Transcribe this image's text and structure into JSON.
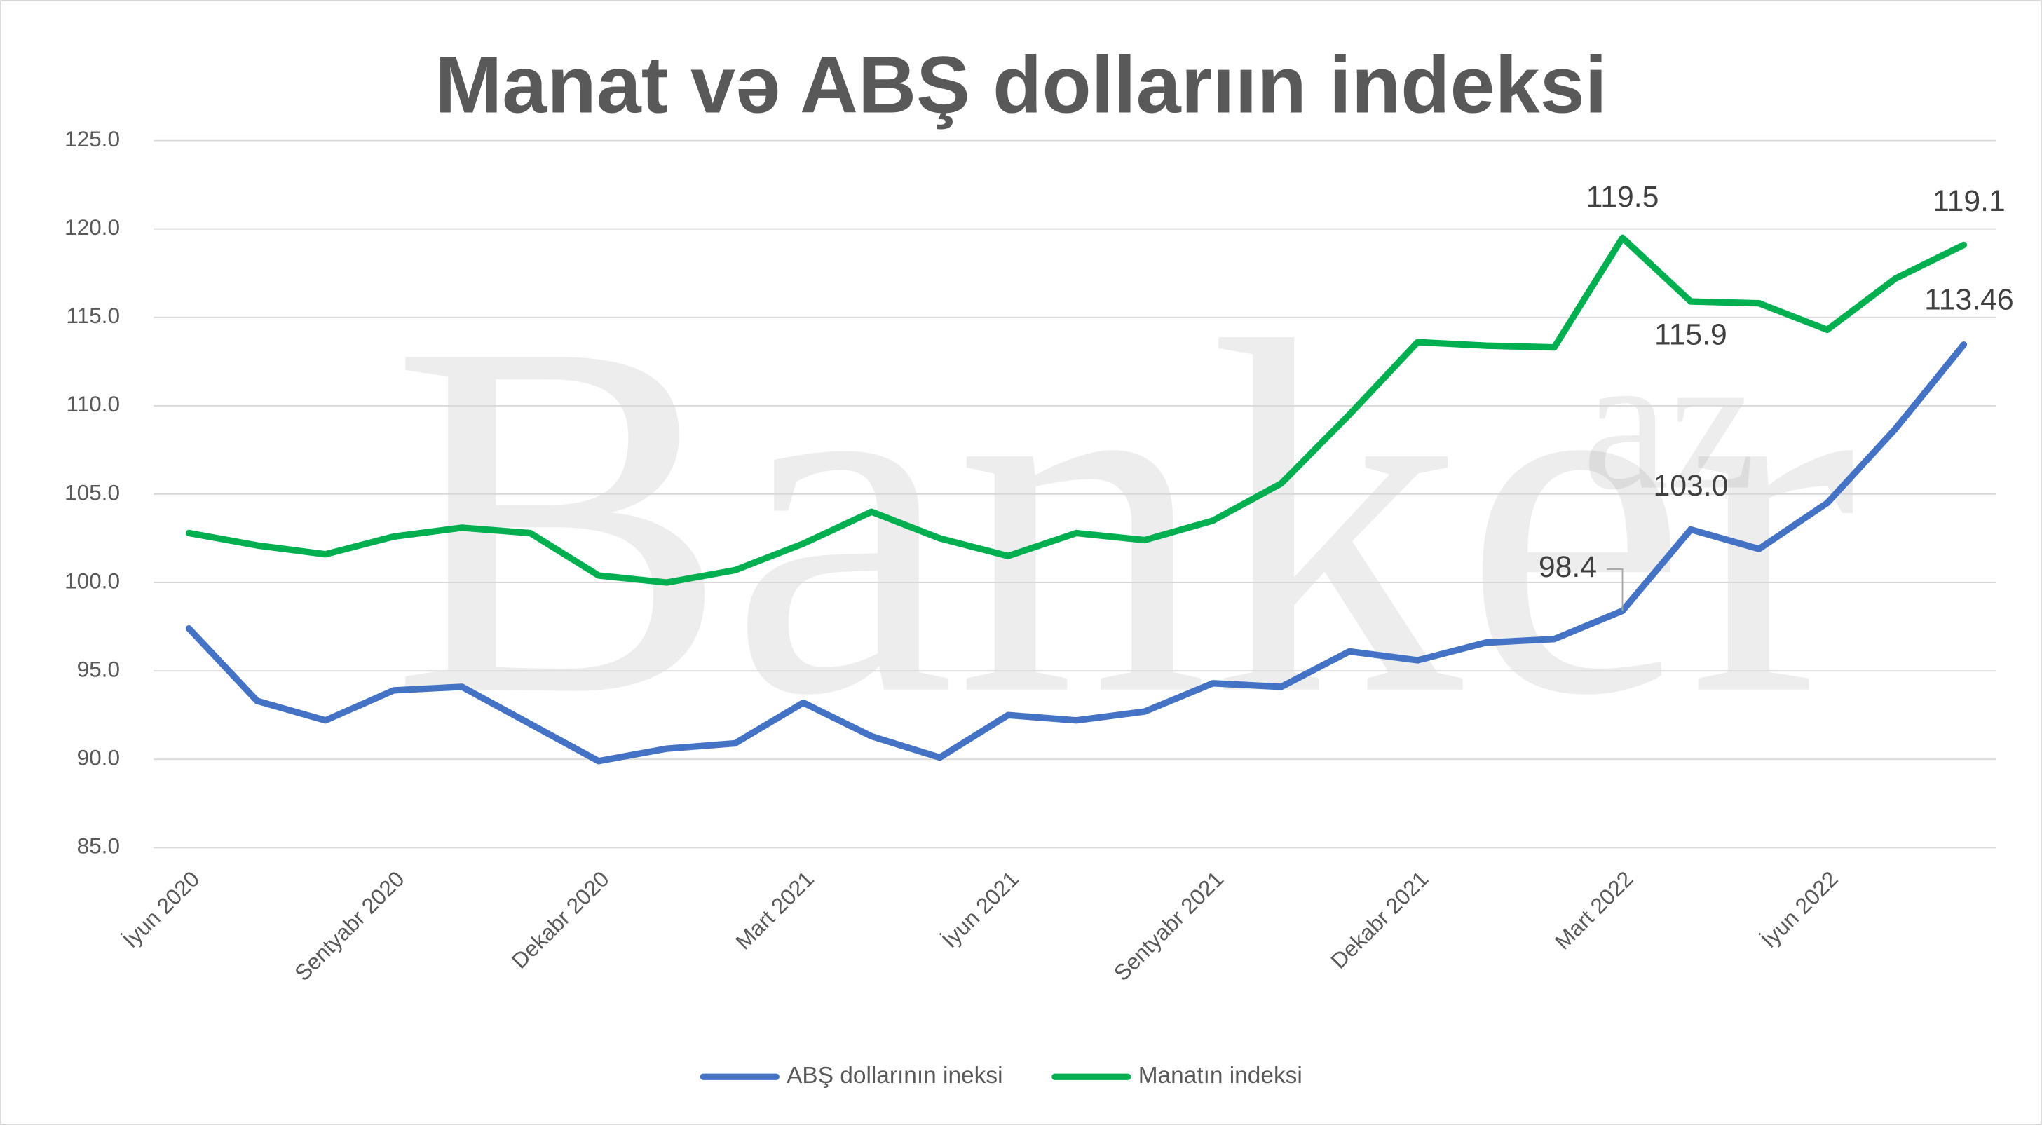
{
  "chart_data": {
    "type": "line",
    "title": "Manat və ABŞ dollarıın indeksi",
    "watermark": "Banker",
    "watermark_suffix": "az",
    "categories": [
      "İyun 2020",
      null,
      null,
      "Sentyabr 2020",
      null,
      null,
      "Dekabr 2020",
      null,
      null,
      "Mart 2021",
      null,
      null,
      "İyun 2021",
      null,
      null,
      "Sentyabr 2021",
      null,
      null,
      "Dekabr 2021",
      null,
      null,
      "Mart 2022",
      null,
      null,
      "İyun 2022",
      null,
      null
    ],
    "series": [
      {
        "name": "ABŞ dollarının ineksi",
        "color": "#4472c4",
        "values": [
          97.4,
          93.3,
          92.2,
          93.9,
          94.1,
          92.0,
          89.9,
          90.6,
          90.9,
          93.2,
          91.3,
          90.1,
          92.5,
          92.2,
          92.7,
          94.3,
          94.1,
          96.1,
          95.6,
          96.6,
          96.8,
          98.4,
          103.0,
          101.9,
          104.5,
          108.7,
          113.46
        ],
        "value_labels": [
          null,
          null,
          null,
          null,
          null,
          null,
          null,
          null,
          null,
          null,
          null,
          null,
          null,
          null,
          null,
          null,
          null,
          null,
          null,
          null,
          null,
          "98.4",
          "103.0",
          null,
          null,
          null,
          "113.46"
        ]
      },
      {
        "name": "Manatın indeksi",
        "color": "#00b050",
        "values": [
          102.8,
          102.1,
          101.6,
          102.6,
          103.1,
          102.8,
          100.4,
          100.0,
          100.7,
          102.2,
          104.0,
          102.5,
          101.5,
          102.8,
          102.4,
          103.5,
          105.6,
          109.5,
          113.6,
          113.4,
          113.3,
          119.5,
          115.9,
          115.8,
          114.3,
          117.2,
          119.1
        ],
        "value_labels": [
          null,
          null,
          null,
          null,
          null,
          null,
          null,
          null,
          null,
          null,
          null,
          null,
          null,
          null,
          null,
          null,
          null,
          null,
          null,
          null,
          null,
          "119.5",
          "115.9",
          null,
          null,
          null,
          "119.1"
        ]
      }
    ],
    "ylim": [
      85,
      125
    ],
    "yticks": [
      {
        "value": 85,
        "label": "85.0"
      },
      {
        "value": 90,
        "label": "90.0"
      },
      {
        "value": 95,
        "label": "95.0"
      },
      {
        "value": 100,
        "label": "100.0"
      },
      {
        "value": 105,
        "label": "105.0"
      },
      {
        "value": 110,
        "label": "110.0"
      },
      {
        "value": 115,
        "label": "115.0"
      },
      {
        "value": 120,
        "label": "120.0"
      },
      {
        "value": 125,
        "label": "125.0"
      }
    ],
    "grid": true,
    "legend": "bottom"
  }
}
